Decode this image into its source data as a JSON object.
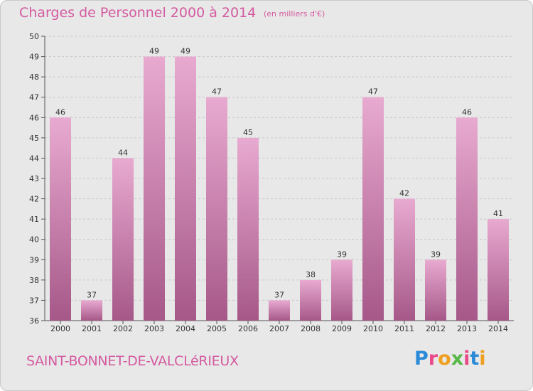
{
  "title": "Charges de Personnel 2000 à 2014",
  "subtitle": "(en milliers d'€)",
  "commune": "SAINT-BONNET-DE-VALCLéRIEUX",
  "brand": {
    "letters": [
      "P",
      "r",
      "o",
      "x",
      "i",
      "t",
      "i"
    ],
    "colors": [
      "#2a8ad8",
      "#e84a8a",
      "#f0a020",
      "#58b848",
      "#e84a8a",
      "#2a8ad8",
      "#f0a020"
    ]
  },
  "colors": {
    "bar_light": "#e8aad0",
    "bar_dark": "#a65888",
    "accent": "#d45aa0",
    "plot_bg": "#e8e8e8",
    "grid": "#c8c8c8"
  },
  "chart_data": {
    "type": "bar",
    "title": "Charges de Personnel 2000 à 2014",
    "subtitle": "(en milliers d'€)",
    "categories": [
      "2000",
      "2001",
      "2002",
      "2003",
      "2004",
      "2005",
      "2006",
      "2007",
      "2008",
      "2009",
      "2010",
      "2011",
      "2012",
      "2013",
      "2014"
    ],
    "values": [
      46,
      37,
      44,
      49,
      49,
      47,
      45,
      37,
      38,
      39,
      47,
      42,
      39,
      46,
      41
    ],
    "ylim": [
      36,
      50
    ],
    "yticks": [
      36,
      37,
      38,
      39,
      40,
      41,
      42,
      43,
      44,
      45,
      46,
      47,
      48,
      49,
      50
    ],
    "grid": true
  }
}
